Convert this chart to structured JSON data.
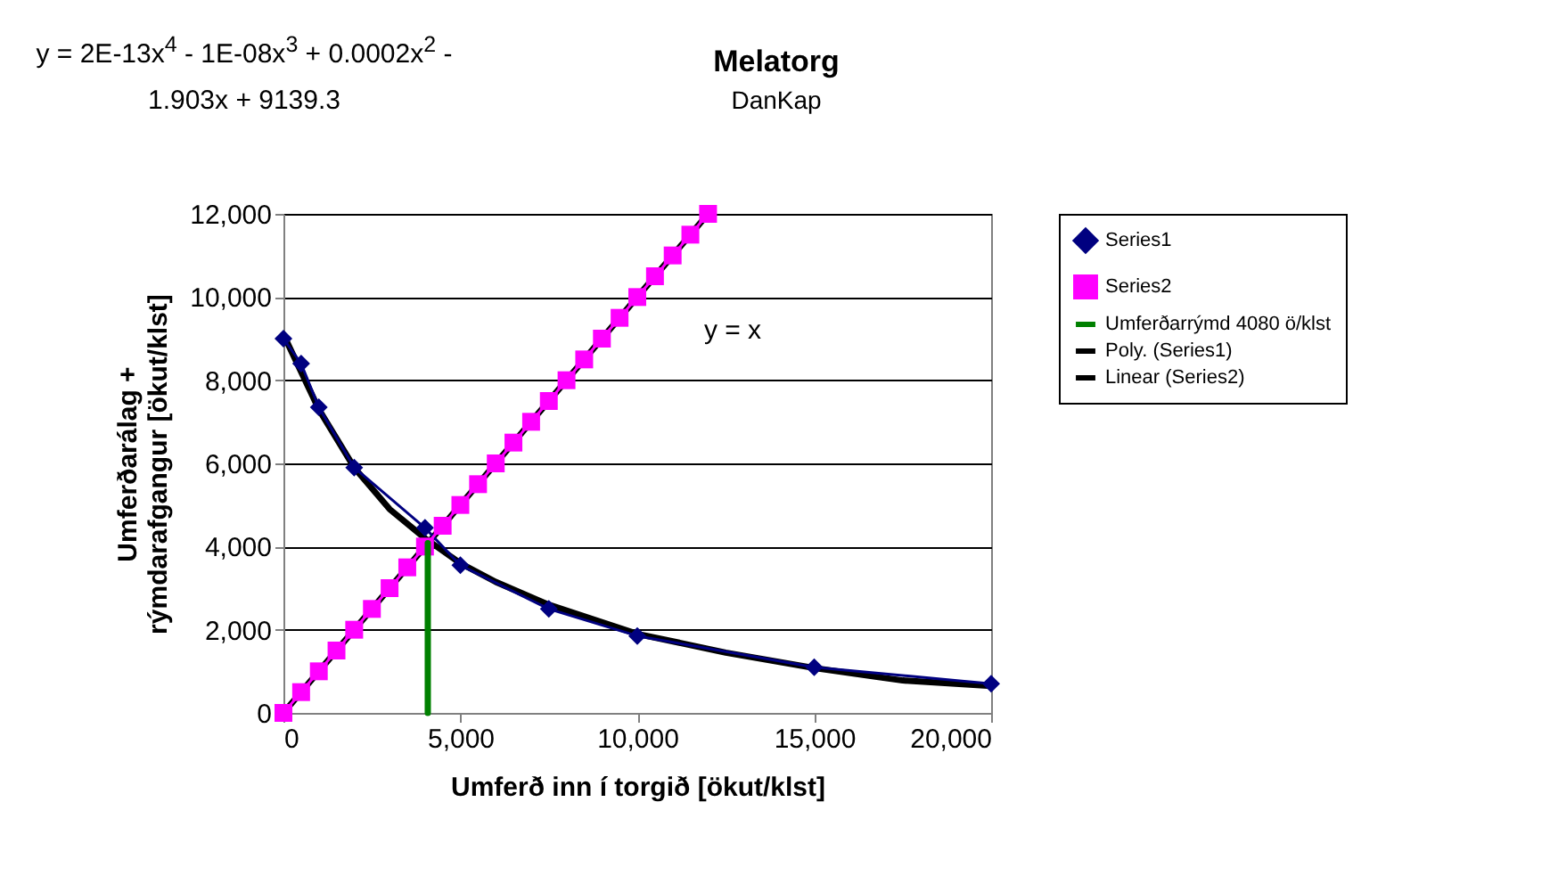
{
  "chart_data": {
    "type": "line",
    "title": "Melatorg",
    "subtitle": "DanKap",
    "xlabel": "Umferð inn í torgið [ökut/klst]",
    "ylabel": "Umferðarálag + rýmdarafgangur [ökut/klst]",
    "xlim": [
      0,
      20000
    ],
    "xticks": [
      {
        "value": 0,
        "label": "0"
      },
      {
        "value": 5000,
        "label": "5,000"
      },
      {
        "value": 10000,
        "label": "10,000"
      },
      {
        "value": 15000,
        "label": "15,000"
      },
      {
        "value": 20000,
        "label": "20,000"
      }
    ],
    "ylim": [
      0,
      12000
    ],
    "yticks": [
      {
        "value": 0,
        "label": "0"
      },
      {
        "value": 2000,
        "label": "2,000"
      },
      {
        "value": 4000,
        "label": "4,000"
      },
      {
        "value": 6000,
        "label": "6,000"
      },
      {
        "value": 8000,
        "label": "8,000"
      },
      {
        "value": 10000,
        "label": "10,000"
      },
      {
        "value": 12000,
        "label": "12,000"
      }
    ],
    "grid": "y",
    "legend": "right",
    "annotations": [
      "y = 2E-13x$^{4}$ - 1E-08x$^{3}$ + 0.0002x$^{2}$ - 1.903x + 9139.3",
      "y = x"
    ],
    "series": [
      {
        "name": "Series1",
        "marker": "diamond",
        "color": "#000080",
        "x": [
          0,
          500,
          1000,
          2000,
          4000,
          5000,
          7500,
          10000,
          15000,
          20000
        ],
        "values": [
          9000,
          8400,
          7350,
          5900,
          4450,
          3550,
          2500,
          1850,
          1100,
          700
        ]
      },
      {
        "name": "Series2",
        "marker": "square",
        "color": "#ff00ff",
        "x": [
          0,
          500,
          1000,
          1500,
          2000,
          2500,
          3000,
          3500,
          4000,
          4500,
          5000,
          5500,
          6000,
          6500,
          7000,
          7500,
          8000,
          8500,
          9000,
          9500,
          10000,
          10500,
          11000,
          11500,
          12000
        ],
        "values": [
          0,
          500,
          1000,
          1500,
          2000,
          2500,
          3000,
          3500,
          4000,
          4500,
          5000,
          5500,
          6000,
          6500,
          7000,
          7500,
          8000,
          8500,
          9000,
          9500,
          10000,
          10500,
          11000,
          11500,
          12000
        ]
      },
      {
        "name": "Umferðarrýmd 4080 ö/klst",
        "marker": "none",
        "color": "#008000",
        "x": [
          4080,
          4080
        ],
        "values": [
          0,
          4080
        ]
      },
      {
        "name": "Poly. (Series1)",
        "marker": "none",
        "color": "#000000",
        "x": [
          0,
          1000,
          2000,
          3000,
          4000,
          5000,
          6000,
          7500,
          10000,
          12500,
          15000,
          17500,
          20000
        ],
        "values": [
          9100,
          7300,
          5900,
          4900,
          4200,
          3600,
          3150,
          2600,
          1900,
          1450,
          1080,
          780,
          650
        ]
      },
      {
        "name": "Linear (Series2)",
        "marker": "none",
        "color": "#000000",
        "x": [
          0,
          12000
        ],
        "values": [
          0,
          12000
        ]
      }
    ]
  }
}
